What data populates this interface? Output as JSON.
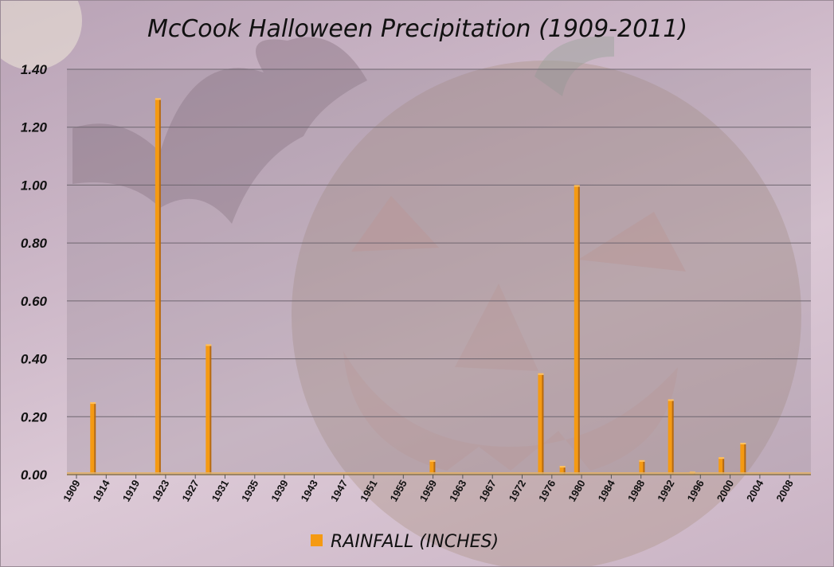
{
  "chart_data": {
    "type": "bar",
    "title": "McCook Halloween Precipitation (1909-2011)",
    "xlabel": "",
    "ylabel": "",
    "ylim": [
      0,
      1.4
    ],
    "yticks": [
      "0.00",
      "0.20",
      "0.40",
      "0.60",
      "0.80",
      "1.00",
      "1.20",
      "1.40"
    ],
    "xtick_labels": [
      "1909",
      "1914",
      "1919",
      "1923",
      "1927",
      "1931",
      "1935",
      "1939",
      "1943",
      "1947",
      "1951",
      "1955",
      "1959",
      "1963",
      "1967",
      "1972",
      "1976",
      "1980",
      "1984",
      "1988",
      "1992",
      "1996",
      "2000",
      "2004",
      "2008"
    ],
    "grid": true,
    "legend_position": "bottom",
    "series": [
      {
        "name": "RAINFALL (INCHES)",
        "color": "#f59a12",
        "bars": [
          {
            "x": "1912",
            "value": 0.25
          },
          {
            "x": "1921",
            "value": 1.3
          },
          {
            "x": "1928",
            "value": 0.45
          },
          {
            "x": "1959",
            "value": 0.05
          },
          {
            "x": "1974",
            "value": 0.35
          },
          {
            "x": "1977",
            "value": 0.03
          },
          {
            "x": "1979",
            "value": 1.0
          },
          {
            "x": "1988",
            "value": 0.05
          },
          {
            "x": "1992",
            "value": 0.26
          },
          {
            "x": "1995",
            "value": 0.01
          },
          {
            "x": "1999",
            "value": 0.06
          },
          {
            "x": "2002",
            "value": 0.11
          }
        ]
      }
    ]
  }
}
